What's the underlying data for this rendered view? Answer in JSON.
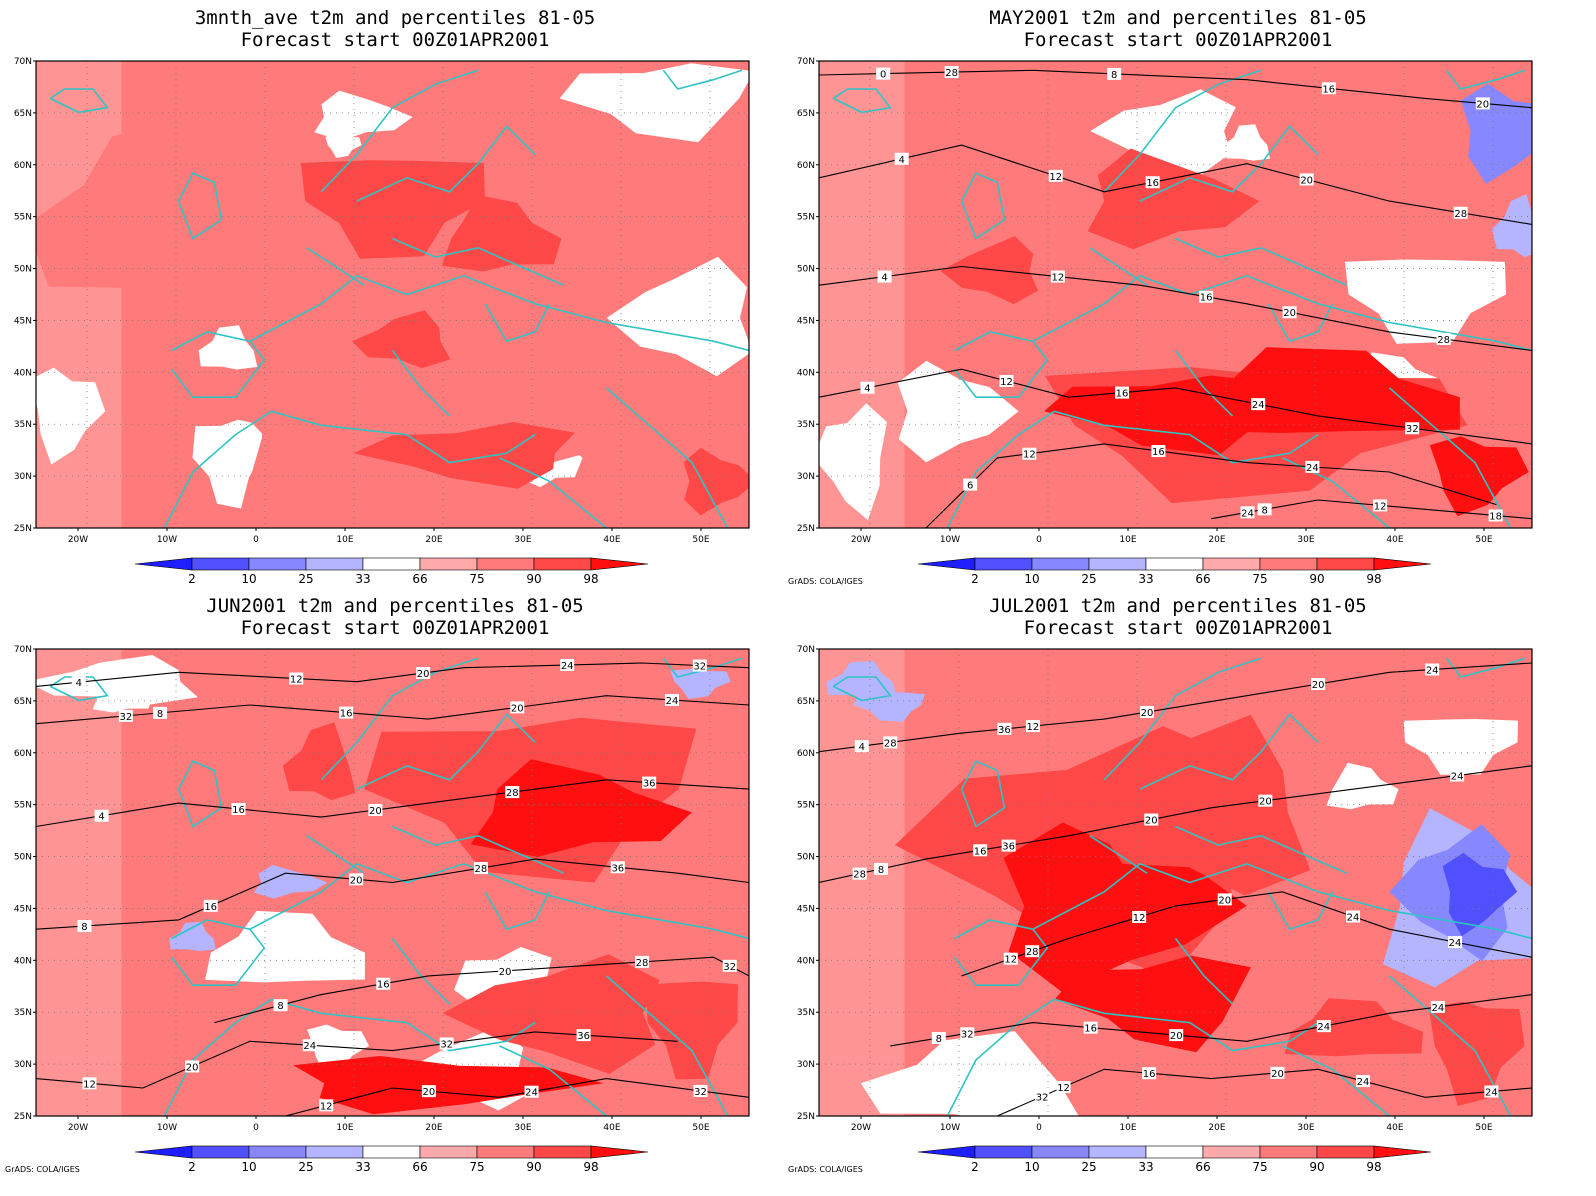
{
  "figure": {
    "panels": [
      {
        "id": "avg",
        "title_line1": "3mnth_ave t2m and percentiles 81-05",
        "title_line2": "Forecast start 00Z01APR2001",
        "credit": "",
        "contour_labels": []
      },
      {
        "id": "may",
        "title_line1": "MAY2001 t2m and percentiles 81-05",
        "title_line2": "Forecast start 00Z01APR2001",
        "credit": "GrADS: COLA/IGES",
        "contour_labels": [
          "0",
          "4",
          "4",
          "4",
          "6",
          "8",
          "8",
          "12",
          "12",
          "12",
          "12",
          "12",
          "16",
          "16",
          "16",
          "16",
          "16",
          "18",
          "20",
          "20",
          "20",
          "24",
          "24",
          "24",
          "28",
          "28",
          "28",
          "32"
        ]
      },
      {
        "id": "jun",
        "title_line1": "JUN2001 t2m and percentiles 81-05",
        "title_line2": "Forecast start 00Z01APR2001",
        "credit": "GrADS: COLA/IGES",
        "contour_labels": [
          "4",
          "8",
          "4",
          "8",
          "8",
          "12",
          "12",
          "12",
          "16",
          "16",
          "16",
          "16",
          "20",
          "20",
          "20",
          "20",
          "20",
          "20",
          "20",
          "24",
          "24",
          "24",
          "24",
          "28",
          "28",
          "28",
          "32",
          "32",
          "32",
          "32",
          "36",
          "36",
          "32",
          "36"
        ]
      },
      {
        "id": "jul",
        "title_line1": "JUL2001 t2m and percentiles 81-05",
        "title_line2": "Forecast start 00Z01APR2001",
        "credit": "GrADS: COLA/IGES",
        "contour_labels": [
          "4",
          "8",
          "12",
          "8",
          "12",
          "12",
          "16",
          "12",
          "16",
          "16",
          "20",
          "20",
          "20",
          "20",
          "20",
          "20",
          "20",
          "24",
          "24",
          "24",
          "24",
          "24",
          "24",
          "24",
          "24",
          "28",
          "28",
          "28",
          "32",
          "32",
          "36",
          "36"
        ]
      }
    ],
    "lat_ticks": [
      "70N",
      "65N",
      "60N",
      "55N",
      "50N",
      "45N",
      "40N",
      "35N",
      "30N",
      "25N"
    ],
    "lon_ticks": [
      "20W",
      "10W",
      "0",
      "10E",
      "20E",
      "30E",
      "40E",
      "50E"
    ],
    "colorbar": {
      "labels": [
        "2",
        "10",
        "25",
        "33",
        "66",
        "75",
        "90",
        "98"
      ],
      "colors": [
        "#1e1eff",
        "#5050ff",
        "#8787ff",
        "#b4b4ff",
        "#ffffff",
        "#ffaaaa",
        "#ff7a7a",
        "#ff4848",
        "#ff0f0f"
      ]
    },
    "colors": {
      "coastline": "#2ec4c4",
      "contour": "#000000",
      "background_red": "#ff7a7a"
    }
  }
}
